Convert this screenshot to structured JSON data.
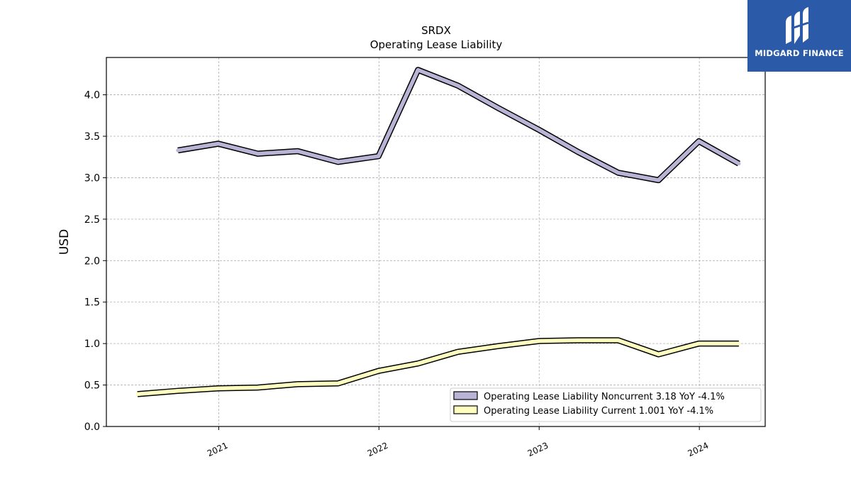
{
  "chart_data": {
    "type": "line",
    "title": "SRDX",
    "subtitle": "Operating Lease Liability",
    "ylabel": "USD",
    "xlabel": "",
    "ylim": [
      0,
      4.45
    ],
    "yticks": [
      "0.0",
      "0.5",
      "1.0",
      "1.5",
      "2.0",
      "2.5",
      "3.0",
      "3.5",
      "4.0"
    ],
    "xlim": [
      "2020-04-20",
      "2024-05-30"
    ],
    "xticks": [
      {
        "label": "2021",
        "date": "2021-01-01"
      },
      {
        "label": "2022",
        "date": "2022-01-01"
      },
      {
        "label": "2023",
        "date": "2023-01-01"
      },
      {
        "label": "2024",
        "date": "2024-01-01"
      }
    ],
    "grid": true,
    "legend_position": "bottom-right",
    "series": [
      {
        "name": "Operating Lease Liability Noncurrent",
        "legend_label": "Operating Lease Liability Noncurrent  3.18 YoY -4.1%",
        "color": "#b9b4d6",
        "points": [
          {
            "x": "2020-09-30",
            "y": 3.33
          },
          {
            "x": "2020-12-31",
            "y": 3.41
          },
          {
            "x": "2021-03-31",
            "y": 3.29
          },
          {
            "x": "2021-06-30",
            "y": 3.32
          },
          {
            "x": "2021-09-30",
            "y": 3.19
          },
          {
            "x": "2021-12-31",
            "y": 3.26
          },
          {
            "x": "2022-03-31",
            "y": 4.3
          },
          {
            "x": "2022-06-30",
            "y": 4.11
          },
          {
            "x": "2022-09-30",
            "y": 3.84
          },
          {
            "x": "2022-12-31",
            "y": 3.58
          },
          {
            "x": "2023-03-31",
            "y": 3.31
          },
          {
            "x": "2023-06-30",
            "y": 3.06
          },
          {
            "x": "2023-09-30",
            "y": 2.97
          },
          {
            "x": "2023-12-31",
            "y": 3.44
          },
          {
            "x": "2024-03-31",
            "y": 3.17
          }
        ]
      },
      {
        "name": "Operating Lease Liability Current",
        "legend_label": "Operating Lease Liability Current  1.001 YoY -4.1%",
        "color": "#ffffc0",
        "points": [
          {
            "x": "2020-06-30",
            "y": 0.39
          },
          {
            "x": "2020-09-30",
            "y": 0.43
          },
          {
            "x": "2020-12-31",
            "y": 0.46
          },
          {
            "x": "2021-03-31",
            "y": 0.47
          },
          {
            "x": "2021-06-30",
            "y": 0.51
          },
          {
            "x": "2021-09-30",
            "y": 0.52
          },
          {
            "x": "2021-12-31",
            "y": 0.67
          },
          {
            "x": "2022-03-31",
            "y": 0.76
          },
          {
            "x": "2022-06-30",
            "y": 0.9
          },
          {
            "x": "2022-09-30",
            "y": 0.97
          },
          {
            "x": "2022-12-31",
            "y": 1.03
          },
          {
            "x": "2023-03-31",
            "y": 1.04
          },
          {
            "x": "2023-06-30",
            "y": 1.04
          },
          {
            "x": "2023-09-30",
            "y": 0.87
          },
          {
            "x": "2023-12-31",
            "y": 1.0
          },
          {
            "x": "2024-03-31",
            "y": 1.0
          }
        ]
      }
    ]
  },
  "logo": {
    "text": "MIDGARD FINANCE",
    "color": "#2b5aa8"
  }
}
